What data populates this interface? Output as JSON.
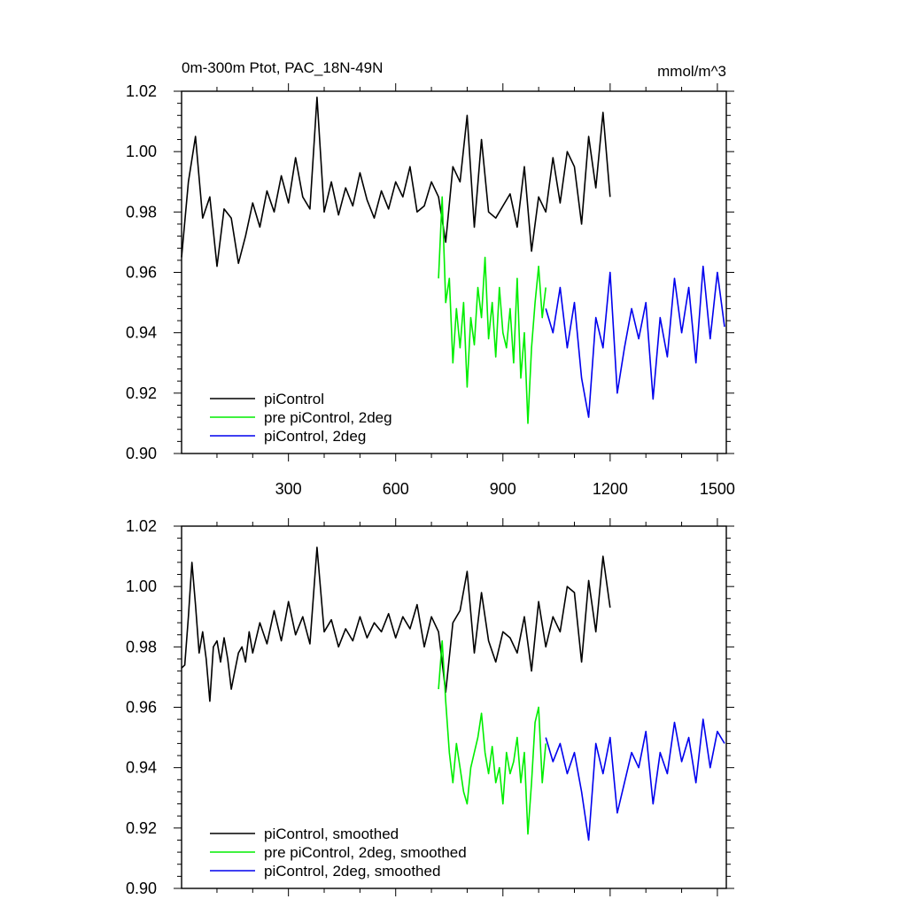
{
  "header": {
    "title": "0m-300m Ptot, PAC_18N-49N",
    "units": "mmol/m^3"
  },
  "colors": {
    "piControl": "#000000",
    "pre": "#00ee00",
    "deg2": "#0000ee"
  },
  "chart_data": [
    {
      "type": "line",
      "panel": "top",
      "xlim": [
        1,
        1525
      ],
      "ylim": [
        0.9,
        1.02
      ],
      "x_ticks": [
        300,
        600,
        900,
        1200,
        1500
      ],
      "x_tick_labels": [
        "300",
        "600",
        "900",
        "1200",
        "1500"
      ],
      "y_ticks": [
        0.9,
        0.92,
        0.94,
        0.96,
        0.98,
        1.0,
        1.02
      ],
      "y_tick_labels": [
        "0.90",
        "0.92",
        "0.94",
        "0.96",
        "0.98",
        "1.00",
        "1.02"
      ],
      "legend_position": "bottom-left",
      "series": [
        {
          "name": "piControl",
          "color_key": "piControl",
          "x": [
            1,
            20,
            40,
            60,
            80,
            100,
            120,
            140,
            160,
            180,
            200,
            220,
            240,
            260,
            280,
            300,
            320,
            340,
            360,
            380,
            400,
            420,
            440,
            460,
            480,
            500,
            520,
            540,
            560,
            580,
            600,
            620,
            640,
            660,
            680,
            700,
            720,
            740,
            760,
            780,
            800,
            820,
            840,
            860,
            880,
            900,
            920,
            940,
            960,
            980,
            1000,
            1020,
            1040,
            1060,
            1080,
            1100,
            1120,
            1140,
            1160,
            1180,
            1200
          ],
          "values": [
            0.965,
            0.99,
            1.005,
            0.978,
            0.985,
            0.962,
            0.981,
            0.978,
            0.963,
            0.972,
            0.983,
            0.975,
            0.987,
            0.98,
            0.992,
            0.983,
            0.998,
            0.985,
            0.981,
            1.018,
            0.98,
            0.99,
            0.979,
            0.988,
            0.982,
            0.993,
            0.984,
            0.978,
            0.987,
            0.981,
            0.99,
            0.985,
            0.995,
            0.98,
            0.982,
            0.99,
            0.985,
            0.97,
            0.995,
            0.99,
            1.012,
            0.975,
            1.004,
            0.98,
            0.978,
            0.982,
            0.986,
            0.975,
            0.995,
            0.967,
            0.985,
            0.98,
            0.998,
            0.983,
            1.0,
            0.995,
            0.976,
            1.005,
            0.988,
            1.013,
            0.985
          ]
        },
        {
          "name": "pre piControl, 2deg",
          "color_key": "pre",
          "x": [
            720,
            730,
            740,
            750,
            760,
            770,
            780,
            790,
            800,
            810,
            820,
            830,
            840,
            850,
            860,
            870,
            880,
            890,
            900,
            910,
            920,
            930,
            940,
            950,
            960,
            970,
            980,
            990,
            1000,
            1010,
            1020
          ],
          "values": [
            0.958,
            0.985,
            0.95,
            0.958,
            0.93,
            0.948,
            0.935,
            0.95,
            0.922,
            0.945,
            0.936,
            0.955,
            0.945,
            0.965,
            0.938,
            0.95,
            0.932,
            0.955,
            0.94,
            0.935,
            0.948,
            0.93,
            0.958,
            0.925,
            0.94,
            0.91,
            0.935,
            0.95,
            0.962,
            0.945,
            0.955
          ]
        },
        {
          "name": "piControl, 2deg",
          "color_key": "deg2",
          "x": [
            1020,
            1040,
            1060,
            1080,
            1100,
            1120,
            1140,
            1160,
            1180,
            1200,
            1220,
            1240,
            1260,
            1280,
            1300,
            1320,
            1340,
            1360,
            1380,
            1400,
            1420,
            1440,
            1460,
            1480,
            1500,
            1520
          ],
          "values": [
            0.948,
            0.94,
            0.955,
            0.935,
            0.95,
            0.925,
            0.912,
            0.945,
            0.935,
            0.96,
            0.92,
            0.935,
            0.948,
            0.938,
            0.95,
            0.918,
            0.945,
            0.932,
            0.958,
            0.94,
            0.955,
            0.93,
            0.962,
            0.938,
            0.96,
            0.942
          ]
        }
      ],
      "legend": [
        "piControl",
        "pre piControl, 2deg",
        "piControl, 2deg"
      ]
    },
    {
      "type": "line",
      "panel": "bottom",
      "xlim": [
        1,
        1525
      ],
      "ylim": [
        0.9,
        1.02
      ],
      "y_ticks": [
        0.9,
        0.92,
        0.94,
        0.96,
        0.98,
        1.0,
        1.02
      ],
      "y_tick_labels": [
        "0.90",
        "0.92",
        "0.94",
        "0.96",
        "0.98",
        "1.00",
        "1.02"
      ],
      "legend_position": "bottom-left",
      "series": [
        {
          "name": "piControl, smoothed",
          "color_key": "piControl",
          "x": [
            1,
            10,
            20,
            30,
            40,
            50,
            60,
            70,
            80,
            90,
            100,
            110,
            120,
            130,
            140,
            150,
            160,
            170,
            180,
            190,
            200,
            220,
            240,
            260,
            280,
            300,
            320,
            340,
            360,
            380,
            400,
            420,
            440,
            460,
            480,
            500,
            520,
            540,
            560,
            580,
            600,
            620,
            640,
            660,
            680,
            700,
            720,
            740,
            760,
            780,
            800,
            820,
            840,
            860,
            880,
            900,
            920,
            940,
            960,
            980,
            1000,
            1020,
            1040,
            1060,
            1080,
            1100,
            1120,
            1140,
            1160,
            1180,
            1200
          ],
          "values": [
            0.973,
            0.974,
            0.99,
            1.008,
            0.994,
            0.978,
            0.985,
            0.976,
            0.962,
            0.98,
            0.982,
            0.975,
            0.983,
            0.976,
            0.966,
            0.972,
            0.978,
            0.98,
            0.975,
            0.985,
            0.978,
            0.988,
            0.981,
            0.992,
            0.982,
            0.995,
            0.984,
            0.99,
            0.981,
            1.013,
            0.985,
            0.989,
            0.98,
            0.986,
            0.982,
            0.99,
            0.983,
            0.988,
            0.985,
            0.991,
            0.983,
            0.99,
            0.986,
            0.994,
            0.98,
            0.99,
            0.985,
            0.965,
            0.988,
            0.992,
            1.005,
            0.978,
            0.998,
            0.982,
            0.975,
            0.985,
            0.983,
            0.978,
            0.99,
            0.972,
            0.995,
            0.98,
            0.99,
            0.985,
            1.0,
            0.998,
            0.975,
            1.002,
            0.985,
            1.01,
            0.993
          ]
        },
        {
          "name": "pre piControl, 2deg, smoothed",
          "color_key": "pre",
          "x": [
            720,
            730,
            740,
            750,
            760,
            770,
            780,
            790,
            800,
            810,
            820,
            830,
            840,
            850,
            860,
            870,
            880,
            890,
            900,
            910,
            920,
            930,
            940,
            950,
            960,
            970,
            980,
            990,
            1000,
            1010,
            1020
          ],
          "values": [
            0.966,
            0.982,
            0.962,
            0.945,
            0.935,
            0.948,
            0.94,
            0.932,
            0.928,
            0.94,
            0.945,
            0.95,
            0.958,
            0.945,
            0.938,
            0.947,
            0.935,
            0.94,
            0.928,
            0.945,
            0.938,
            0.942,
            0.95,
            0.935,
            0.945,
            0.918,
            0.935,
            0.955,
            0.96,
            0.935,
            0.948
          ]
        },
        {
          "name": "piControl, 2deg, smoothed",
          "color_key": "deg2",
          "x": [
            1020,
            1040,
            1060,
            1080,
            1100,
            1120,
            1140,
            1160,
            1180,
            1200,
            1220,
            1240,
            1260,
            1280,
            1300,
            1320,
            1340,
            1360,
            1380,
            1400,
            1420,
            1440,
            1460,
            1480,
            1500,
            1520
          ],
          "values": [
            0.95,
            0.942,
            0.948,
            0.938,
            0.945,
            0.932,
            0.916,
            0.948,
            0.938,
            0.95,
            0.925,
            0.935,
            0.945,
            0.94,
            0.952,
            0.928,
            0.945,
            0.938,
            0.955,
            0.942,
            0.95,
            0.935,
            0.956,
            0.94,
            0.952,
            0.948
          ]
        }
      ],
      "legend": [
        "piControl, smoothed",
        "pre piControl, 2deg, smoothed",
        "piControl, 2deg, smoothed"
      ]
    }
  ]
}
